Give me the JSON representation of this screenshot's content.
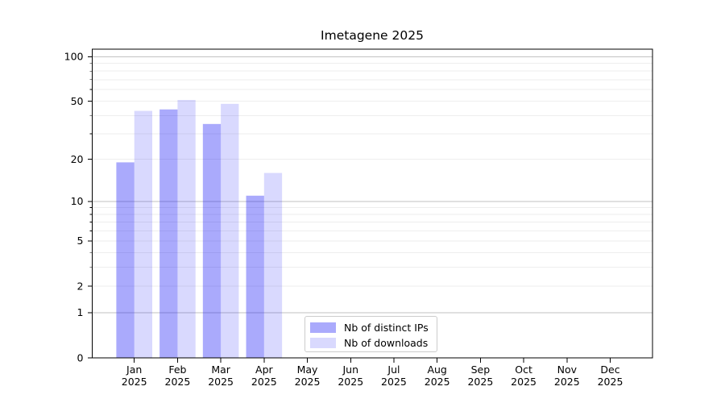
{
  "title": "Imetagene 2025",
  "colors": {
    "bar_ips": "rgba(0,0,245,0.335)",
    "bar_downloads": "rgba(0,0,245,0.15)",
    "grid_major": "#c2c2c2",
    "grid_minor": "#eeeeee",
    "axis": "#000000",
    "legend_border": "#cccccc",
    "text": "#000000"
  },
  "legend": {
    "position": "lower center",
    "items": [
      {
        "label": "Nb of distinct IPs",
        "color_key": "bar_ips"
      },
      {
        "label": "Nb of downloads",
        "color_key": "bar_downloads"
      }
    ]
  },
  "chart_data": {
    "type": "bar",
    "title": "Imetagene 2025",
    "categories": [
      "Jan",
      "Feb",
      "Mar",
      "Apr",
      "May",
      "Jun",
      "Jul",
      "Aug",
      "Sep",
      "Oct",
      "Nov",
      "Dec"
    ],
    "category_year": "2025",
    "series": [
      {
        "name": "Nb of distinct IPs",
        "color_key": "bar_ips",
        "values": [
          19,
          44,
          35,
          11,
          0,
          0,
          0,
          0,
          0,
          0,
          0,
          0
        ]
      },
      {
        "name": "Nb of downloads",
        "color_key": "bar_downloads",
        "values": [
          43,
          51,
          48,
          16,
          0,
          0,
          0,
          0,
          0,
          0,
          0,
          0
        ]
      }
    ],
    "xlabel": "",
    "ylabel": "",
    "yscale": "log(x+1)",
    "ylim": [
      0,
      112
    ],
    "yticks": [
      0,
      1,
      2,
      5,
      10,
      20,
      50,
      100
    ],
    "grid_major": [
      1,
      10,
      100
    ],
    "grid_minor": [
      2,
      3,
      4,
      5,
      6,
      7,
      8,
      9,
      20,
      30,
      40,
      50,
      60,
      70,
      80,
      90
    ],
    "grid": "on",
    "legend_position": "lower center"
  }
}
